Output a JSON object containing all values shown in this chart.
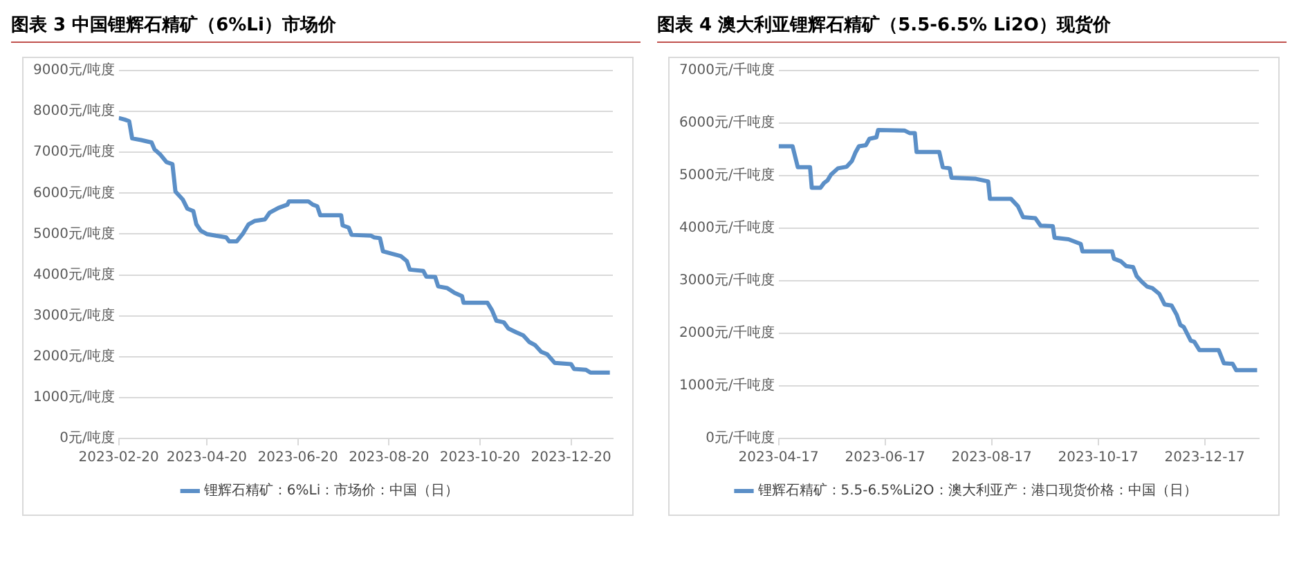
{
  "chart_data": [
    {
      "type": "line",
      "title": "图表 3 中国锂辉石精矿（6%Li）市场价",
      "legend": "bottom",
      "grid": "y",
      "marker": "none",
      "line_style": "solid",
      "xlim": [
        "2023-02-20",
        "2024-01-17"
      ],
      "xticks": [
        "2023-02-20",
        "2023-04-20",
        "2023-06-20",
        "2023-08-20",
        "2023-10-20",
        "2023-12-20"
      ],
      "ylim": [
        0,
        9000
      ],
      "yticks": [
        {
          "value": 0,
          "label": "0元/吨度"
        },
        {
          "value": 1000,
          "label": "1000元/吨度"
        },
        {
          "value": 2000,
          "label": "2000元/吨度"
        },
        {
          "value": 3000,
          "label": "3000元/吨度"
        },
        {
          "value": 4000,
          "label": "4000元/吨度"
        },
        {
          "value": 5000,
          "label": "5000元/吨度"
        },
        {
          "value": 6000,
          "label": "6000元/吨度"
        },
        {
          "value": 7000,
          "label": "7000元/吨度"
        },
        {
          "value": 8000,
          "label": "8000元/吨度"
        },
        {
          "value": 9000,
          "label": "9000元/吨度"
        }
      ],
      "series": [
        {
          "name": "锂辉石精矿：6%Li：市场价：中国（日）",
          "color": "#5b8fc7",
          "x": [
            "2023-02-20",
            "2023-02-24",
            "2023-02-27",
            "2023-03-01",
            "2023-03-07",
            "2023-03-14",
            "2023-03-16",
            "2023-03-20",
            "2023-03-24",
            "2023-03-28",
            "2023-03-30",
            "2023-04-04",
            "2023-04-07",
            "2023-04-11",
            "2023-04-13",
            "2023-04-16",
            "2023-04-20",
            "2023-04-26",
            "2023-05-03",
            "2023-05-05",
            "2023-05-10",
            "2023-05-14",
            "2023-05-18",
            "2023-05-22",
            "2023-05-29",
            "2023-06-01",
            "2023-06-07",
            "2023-06-13",
            "2023-06-14",
            "2023-06-27",
            "2023-06-30",
            "2023-07-03",
            "2023-07-05",
            "2023-07-19",
            "2023-07-20",
            "2023-07-24",
            "2023-07-26",
            "2023-08-08",
            "2023-08-10",
            "2023-08-14",
            "2023-08-16",
            "2023-08-22",
            "2023-08-28",
            "2023-09-01",
            "2023-09-03",
            "2023-09-12",
            "2023-09-14",
            "2023-09-20",
            "2023-09-22",
            "2023-09-28",
            "2023-10-03",
            "2023-10-08",
            "2023-10-09",
            "2023-10-25",
            "2023-10-28",
            "2023-10-31",
            "2023-11-05",
            "2023-11-08",
            "2023-11-13",
            "2023-11-18",
            "2023-11-22",
            "2023-11-26",
            "2023-11-30",
            "2023-12-04",
            "2023-12-09",
            "2023-12-20",
            "2023-12-22",
            "2023-12-30",
            "2024-01-02",
            "2024-01-15"
          ],
          "values": [
            7840,
            7800,
            7760,
            7340,
            7300,
            7240,
            7070,
            6940,
            6760,
            6710,
            6040,
            5840,
            5620,
            5560,
            5240,
            5080,
            5000,
            4960,
            4920,
            4820,
            4820,
            5000,
            5240,
            5320,
            5360,
            5520,
            5640,
            5720,
            5800,
            5800,
            5720,
            5680,
            5460,
            5460,
            5210,
            5160,
            4980,
            4960,
            4920,
            4900,
            4580,
            4520,
            4460,
            4340,
            4130,
            4100,
            3960,
            3950,
            3720,
            3680,
            3560,
            3480,
            3320,
            3320,
            3140,
            2880,
            2840,
            2690,
            2600,
            2520,
            2360,
            2280,
            2120,
            2060,
            1850,
            1820,
            1700,
            1680,
            1610,
            1610
          ]
        }
      ]
    },
    {
      "type": "line",
      "title": "图表 4 澳大利亚锂辉石精矿（5.5-6.5% Li2O）现货价",
      "legend": "bottom",
      "grid": "y",
      "marker": "none",
      "line_style": "solid",
      "xlim": [
        "2023-04-17",
        "2024-01-17"
      ],
      "xticks": [
        "2023-04-17",
        "2023-06-17",
        "2023-08-17",
        "2023-10-17",
        "2023-12-17"
      ],
      "ylim": [
        0,
        7000
      ],
      "yticks": [
        {
          "value": 0,
          "label": "0元/千吨度"
        },
        {
          "value": 1000,
          "label": "1000元/千吨度"
        },
        {
          "value": 2000,
          "label": "2000元/千吨度"
        },
        {
          "value": 3000,
          "label": "3000元/千吨度"
        },
        {
          "value": 4000,
          "label": "4000元/千吨度"
        },
        {
          "value": 5000,
          "label": "5000元/千吨度"
        },
        {
          "value": 6000,
          "label": "6000元/千吨度"
        },
        {
          "value": 7000,
          "label": "7000元/千吨度"
        }
      ],
      "series": [
        {
          "name": "锂辉石精矿：5.5-6.5%Li2O：澳大利亚产：港口现货价格：中国（日）",
          "color": "#5b8fc7",
          "x": [
            "2023-04-17",
            "2023-04-25",
            "2023-04-28",
            "2023-05-05",
            "2023-05-06",
            "2023-05-11",
            "2023-05-13",
            "2023-05-15",
            "2023-05-17",
            "2023-05-21",
            "2023-05-26",
            "2023-05-29",
            "2023-05-31",
            "2023-06-02",
            "2023-06-06",
            "2023-06-08",
            "2023-06-12",
            "2023-06-13",
            "2023-06-28",
            "2023-07-01",
            "2023-07-04",
            "2023-07-05",
            "2023-07-18",
            "2023-07-20",
            "2023-07-24",
            "2023-07-25",
            "2023-08-08",
            "2023-08-15",
            "2023-08-16",
            "2023-08-28",
            "2023-09-01",
            "2023-09-04",
            "2023-09-11",
            "2023-09-14",
            "2023-09-21",
            "2023-09-22",
            "2023-09-30",
            "2023-10-07",
            "2023-10-08",
            "2023-10-25",
            "2023-10-26",
            "2023-10-30",
            "2023-11-02",
            "2023-11-06",
            "2023-11-08",
            "2023-11-11",
            "2023-11-14",
            "2023-11-17",
            "2023-11-21",
            "2023-11-24",
            "2023-11-28",
            "2023-12-01",
            "2023-12-03",
            "2023-12-05",
            "2023-12-09",
            "2023-12-11",
            "2023-12-14",
            "2023-12-25",
            "2023-12-28",
            "2024-01-02",
            "2024-01-04",
            "2024-01-16"
          ],
          "values": [
            5560,
            5560,
            5160,
            5160,
            4770,
            4770,
            4860,
            4910,
            5020,
            5140,
            5170,
            5280,
            5440,
            5560,
            5580,
            5700,
            5730,
            5870,
            5860,
            5810,
            5810,
            5450,
            5450,
            5160,
            5140,
            4960,
            4940,
            4890,
            4560,
            4560,
            4420,
            4210,
            4190,
            4050,
            4040,
            3820,
            3790,
            3700,
            3560,
            3560,
            3420,
            3370,
            3280,
            3260,
            3090,
            2980,
            2890,
            2860,
            2750,
            2550,
            2530,
            2350,
            2160,
            2120,
            1860,
            1840,
            1680,
            1680,
            1430,
            1420,
            1300,
            1300
          ]
        }
      ]
    }
  ]
}
